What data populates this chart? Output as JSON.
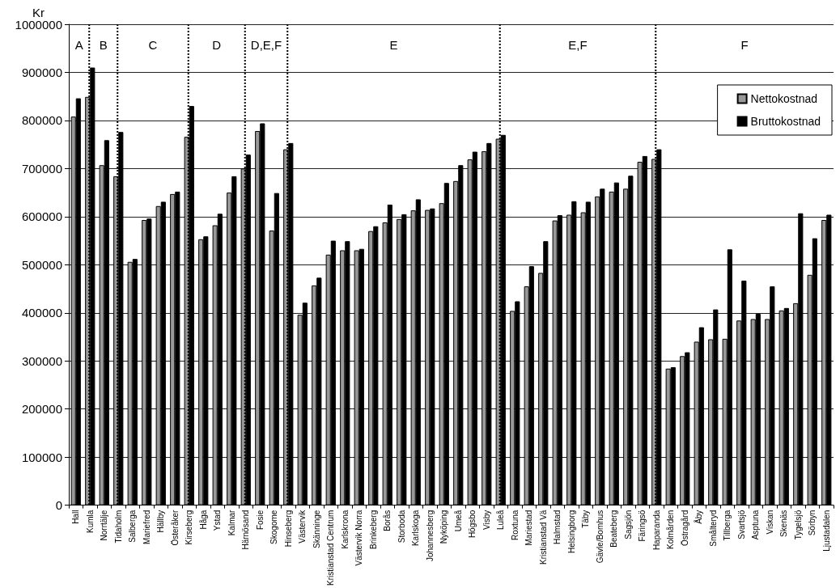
{
  "chart_data": {
    "type": "bar",
    "ylabel": "Kr",
    "categories": [
      "Hall",
      "Kumla",
      "Norrtälje",
      "Tidaholm",
      "Salberga",
      "Mariefred",
      "Hällby",
      "Österåker",
      "Kirseberg",
      "Håga",
      "Ystad",
      "Kalmar",
      "Härnösand",
      "Fosie",
      "Skogome",
      "Hinseberg",
      "Västervik",
      "Skänninge",
      "Kristianstad Centrum",
      "Karlskrona",
      "Västervik Norra",
      "Brinkeberg",
      "Borås",
      "Storboda",
      "Karlskoga",
      "Johannesberg",
      "Nyköping",
      "Umeå",
      "Högsbo",
      "Visby",
      "Luleå",
      "Roxtuna",
      "Mariestad",
      "Kristianstad Vä",
      "Halmstad",
      "Helsingborg",
      "Täby",
      "Gävle/Bomhus",
      "Beateberg",
      "Sagsjön",
      "Färingsö",
      "Haparanda",
      "Kolmården",
      "Östragård",
      "Åby",
      "Smålteryd",
      "Tillberga",
      "Svartsjö",
      "Asptuna",
      "Viskan",
      "Skenäs",
      "Tygelsjö",
      "Sörbyn",
      "Ljustadalen"
    ],
    "series": [
      {
        "name": "Nettokostnad",
        "color": "#999999",
        "values": [
          808000,
          849000,
          707000,
          684000,
          506000,
          593000,
          622000,
          647000,
          766000,
          553000,
          582000,
          650000,
          700000,
          778000,
          571000,
          740000,
          396000,
          457000,
          521000,
          530000,
          530000,
          570000,
          588000,
          595000,
          613000,
          614000,
          628000,
          674000,
          719000,
          736000,
          762000,
          404000,
          455000,
          483000,
          592000,
          604000,
          609000,
          642000,
          652000,
          658000,
          714000,
          720000,
          284000,
          310000,
          340000,
          345000,
          346000,
          384000,
          387000,
          387000,
          405000,
          420000,
          479000,
          593000
        ]
      },
      {
        "name": "Bruttokostnad",
        "color": "#000000",
        "values": [
          846000,
          910000,
          759000,
          776000,
          512000,
          596000,
          631000,
          652000,
          830000,
          559000,
          606000,
          684000,
          729000,
          794000,
          649000,
          753000,
          421000,
          473000,
          550000,
          549000,
          533000,
          580000,
          625000,
          605000,
          636000,
          617000,
          670000,
          707000,
          735000,
          753000,
          770000,
          424000,
          497000,
          549000,
          603000,
          632000,
          631000,
          658000,
          671000,
          685000,
          726000,
          740000,
          287000,
          318000,
          370000,
          407000,
          532000,
          467000,
          398000,
          455000,
          410000,
          607000,
          555000,
          604000
        ]
      }
    ],
    "ylim": [
      0,
      1000000
    ],
    "yticks": [
      0,
      100000,
      200000,
      300000,
      400000,
      500000,
      600000,
      700000,
      800000,
      900000,
      1000000
    ],
    "grid": "y",
    "legend": "top right",
    "ref_lines": [
      {
        "axis": "x",
        "value": "Kumla",
        "color": "#000000",
        "line_style": "dotted"
      },
      {
        "axis": "x",
        "value": "Tidaholm",
        "color": "#000000",
        "line_style": "dotted"
      },
      {
        "axis": "x",
        "value": "Kirseberg",
        "color": "#000000",
        "line_style": "dotted"
      },
      {
        "axis": "x",
        "value": "Härnösand",
        "color": "#000000",
        "line_style": "dotted"
      },
      {
        "axis": "x",
        "value": "Hinseberg",
        "color": "#000000",
        "line_style": "dotted"
      },
      {
        "axis": "x",
        "value": "Luleå",
        "color": "#000000",
        "line_style": "dotted"
      },
      {
        "axis": "x",
        "value": "Haparanda",
        "color": "#000000",
        "line_style": "dotted"
      }
    ],
    "annotations": [
      "A",
      "B",
      "C",
      "D",
      "D,E,F",
      "E",
      "E,F",
      "F"
    ]
  }
}
